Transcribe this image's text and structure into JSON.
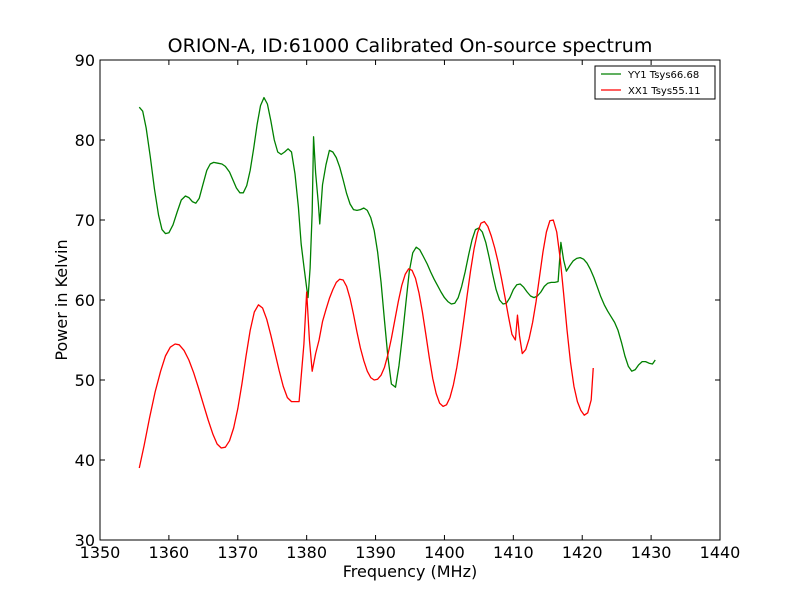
{
  "chart_data": {
    "type": "line",
    "title": "ORION-A, ID:61000 Calibrated On-source spectrum",
    "xlabel": "Frequency (MHz)",
    "ylabel": "Power in Kelvin",
    "xlim": [
      1350,
      1440
    ],
    "ylim": [
      30,
      90
    ],
    "xticks": [
      1350,
      1360,
      1370,
      1380,
      1390,
      1400,
      1410,
      1420,
      1430,
      1440
    ],
    "yticks": [
      30,
      40,
      50,
      60,
      70,
      80,
      90
    ],
    "legend_position": "top-right",
    "grid": false,
    "series": [
      {
        "name": "YY1 Tsys66.68",
        "color": "#008000",
        "points": [
          [
            1355.7,
            84.1
          ],
          [
            1356.2,
            83.6
          ],
          [
            1356.7,
            81.5
          ],
          [
            1357.3,
            77.9
          ],
          [
            1357.9,
            73.9
          ],
          [
            1358.5,
            70.6
          ],
          [
            1359.0,
            68.8
          ],
          [
            1359.5,
            68.3
          ],
          [
            1360.0,
            68.4
          ],
          [
            1360.6,
            69.4
          ],
          [
            1361.2,
            71.0
          ],
          [
            1361.8,
            72.5
          ],
          [
            1362.4,
            73.0
          ],
          [
            1362.9,
            72.8
          ],
          [
            1363.4,
            72.3
          ],
          [
            1363.9,
            72.1
          ],
          [
            1364.4,
            72.7
          ],
          [
            1364.9,
            74.3
          ],
          [
            1365.5,
            76.2
          ],
          [
            1366.0,
            77.0
          ],
          [
            1366.5,
            77.2
          ],
          [
            1367.1,
            77.1
          ],
          [
            1367.7,
            77.0
          ],
          [
            1368.2,
            76.7
          ],
          [
            1368.8,
            76.0
          ],
          [
            1369.3,
            75.0
          ],
          [
            1369.8,
            74.0
          ],
          [
            1370.3,
            73.4
          ],
          [
            1370.8,
            73.4
          ],
          [
            1371.3,
            74.3
          ],
          [
            1371.8,
            76.2
          ],
          [
            1372.3,
            78.9
          ],
          [
            1372.8,
            81.9
          ],
          [
            1373.3,
            84.3
          ],
          [
            1373.8,
            85.3
          ],
          [
            1374.3,
            84.5
          ],
          [
            1374.8,
            82.4
          ],
          [
            1375.3,
            80.0
          ],
          [
            1375.8,
            78.5
          ],
          [
            1376.3,
            78.2
          ],
          [
            1376.8,
            78.5
          ],
          [
            1377.3,
            78.9
          ],
          [
            1377.8,
            78.5
          ],
          [
            1378.3,
            75.8
          ],
          [
            1378.8,
            71.6
          ],
          [
            1379.2,
            67.0
          ],
          [
            1379.6,
            64.2
          ],
          [
            1380.0,
            61.5
          ],
          [
            1380.2,
            60.3
          ],
          [
            1380.5,
            64.0
          ],
          [
            1380.8,
            71.0
          ],
          [
            1381.0,
            80.4
          ],
          [
            1381.3,
            75.9
          ],
          [
            1381.7,
            72.0
          ],
          [
            1381.9,
            69.5
          ],
          [
            1382.3,
            74.4
          ],
          [
            1382.8,
            76.9
          ],
          [
            1383.3,
            78.7
          ],
          [
            1383.8,
            78.5
          ],
          [
            1384.3,
            77.8
          ],
          [
            1384.8,
            76.6
          ],
          [
            1385.3,
            75.0
          ],
          [
            1385.8,
            73.3
          ],
          [
            1386.3,
            72.0
          ],
          [
            1386.8,
            71.3
          ],
          [
            1387.3,
            71.2
          ],
          [
            1387.8,
            71.3
          ],
          [
            1388.3,
            71.5
          ],
          [
            1388.8,
            71.2
          ],
          [
            1389.3,
            70.3
          ],
          [
            1389.8,
            68.7
          ],
          [
            1390.3,
            66.0
          ],
          [
            1390.8,
            62.2
          ],
          [
            1391.3,
            57.4
          ],
          [
            1391.8,
            52.8
          ],
          [
            1392.3,
            49.5
          ],
          [
            1392.9,
            49.1
          ],
          [
            1393.4,
            51.8
          ],
          [
            1393.9,
            55.5
          ],
          [
            1394.4,
            59.6
          ],
          [
            1394.9,
            63.6
          ],
          [
            1395.4,
            65.9
          ],
          [
            1395.9,
            66.6
          ],
          [
            1396.4,
            66.3
          ],
          [
            1396.9,
            65.5
          ],
          [
            1397.5,
            64.5
          ],
          [
            1398.0,
            63.5
          ],
          [
            1398.5,
            62.6
          ],
          [
            1399.0,
            61.8
          ],
          [
            1399.5,
            61.0
          ],
          [
            1400.0,
            60.3
          ],
          [
            1400.5,
            59.8
          ],
          [
            1401.0,
            59.5
          ],
          [
            1401.5,
            59.6
          ],
          [
            1402.0,
            60.3
          ],
          [
            1402.5,
            61.7
          ],
          [
            1403.0,
            63.5
          ],
          [
            1403.5,
            65.6
          ],
          [
            1404.0,
            67.5
          ],
          [
            1404.5,
            68.8
          ],
          [
            1405.0,
            69.0
          ],
          [
            1405.5,
            68.5
          ],
          [
            1406.0,
            67.2
          ],
          [
            1406.5,
            65.3
          ],
          [
            1407.0,
            63.2
          ],
          [
            1407.5,
            61.3
          ],
          [
            1408.0,
            60.0
          ],
          [
            1408.5,
            59.5
          ],
          [
            1409.0,
            59.6
          ],
          [
            1409.5,
            60.3
          ],
          [
            1410.0,
            61.3
          ],
          [
            1410.5,
            61.9
          ],
          [
            1411.0,
            62.0
          ],
          [
            1411.5,
            61.6
          ],
          [
            1412.0,
            61.0
          ],
          [
            1412.5,
            60.5
          ],
          [
            1413.0,
            60.3
          ],
          [
            1413.5,
            60.5
          ],
          [
            1414.0,
            61.0
          ],
          [
            1414.5,
            61.7
          ],
          [
            1415.0,
            62.1
          ],
          [
            1415.5,
            62.2
          ],
          [
            1416.0,
            62.2
          ],
          [
            1416.5,
            62.3
          ],
          [
            1416.9,
            67.2
          ],
          [
            1417.3,
            65.0
          ],
          [
            1417.7,
            63.6
          ],
          [
            1418.2,
            64.3
          ],
          [
            1418.7,
            64.9
          ],
          [
            1419.2,
            65.2
          ],
          [
            1419.7,
            65.3
          ],
          [
            1420.2,
            65.1
          ],
          [
            1420.7,
            64.6
          ],
          [
            1421.2,
            63.8
          ],
          [
            1421.7,
            62.8
          ],
          [
            1422.2,
            61.6
          ],
          [
            1422.7,
            60.4
          ],
          [
            1423.2,
            59.4
          ],
          [
            1423.7,
            58.6
          ],
          [
            1424.2,
            57.9
          ],
          [
            1424.7,
            57.2
          ],
          [
            1425.2,
            56.2
          ],
          [
            1425.7,
            54.7
          ],
          [
            1426.2,
            53.0
          ],
          [
            1426.7,
            51.7
          ],
          [
            1427.2,
            51.1
          ],
          [
            1427.7,
            51.3
          ],
          [
            1428.2,
            51.9
          ],
          [
            1428.7,
            52.3
          ],
          [
            1429.2,
            52.3
          ],
          [
            1429.7,
            52.1
          ],
          [
            1430.2,
            52.0
          ],
          [
            1430.6,
            52.5
          ]
        ]
      },
      {
        "name": "XX1 Tsys55.11",
        "color": "#ff0000",
        "points": [
          [
            1355.7,
            39.0
          ],
          [
            1356.4,
            41.8
          ],
          [
            1357.2,
            45.3
          ],
          [
            1358.0,
            48.5
          ],
          [
            1358.8,
            51.1
          ],
          [
            1359.5,
            53.0
          ],
          [
            1360.2,
            54.1
          ],
          [
            1360.9,
            54.5
          ],
          [
            1361.5,
            54.4
          ],
          [
            1362.2,
            53.7
          ],
          [
            1362.9,
            52.5
          ],
          [
            1363.6,
            50.9
          ],
          [
            1364.3,
            49.0
          ],
          [
            1365.0,
            47.0
          ],
          [
            1365.7,
            45.0
          ],
          [
            1366.4,
            43.2
          ],
          [
            1367.0,
            42.0
          ],
          [
            1367.6,
            41.5
          ],
          [
            1368.2,
            41.6
          ],
          [
            1368.8,
            42.4
          ],
          [
            1369.4,
            44.0
          ],
          [
            1370.0,
            46.4
          ],
          [
            1370.6,
            49.5
          ],
          [
            1371.2,
            53.0
          ],
          [
            1371.8,
            56.2
          ],
          [
            1372.4,
            58.5
          ],
          [
            1373.0,
            59.4
          ],
          [
            1373.6,
            59.0
          ],
          [
            1374.2,
            57.6
          ],
          [
            1374.8,
            55.6
          ],
          [
            1375.4,
            53.4
          ],
          [
            1376.0,
            51.2
          ],
          [
            1376.6,
            49.2
          ],
          [
            1377.2,
            47.8
          ],
          [
            1377.8,
            47.3
          ],
          [
            1378.4,
            47.3
          ],
          [
            1378.9,
            47.3
          ],
          [
            1379.6,
            54.5
          ],
          [
            1380.0,
            61.0
          ],
          [
            1380.4,
            55.0
          ],
          [
            1380.8,
            51.1
          ],
          [
            1381.3,
            53.3
          ],
          [
            1381.8,
            55.0
          ],
          [
            1382.3,
            57.3
          ],
          [
            1382.8,
            58.8
          ],
          [
            1383.3,
            60.2
          ],
          [
            1383.8,
            61.3
          ],
          [
            1384.3,
            62.2
          ],
          [
            1384.8,
            62.6
          ],
          [
            1385.3,
            62.5
          ],
          [
            1385.8,
            61.7
          ],
          [
            1386.3,
            60.2
          ],
          [
            1386.8,
            58.2
          ],
          [
            1387.3,
            56.0
          ],
          [
            1387.8,
            54.0
          ],
          [
            1388.3,
            52.4
          ],
          [
            1388.8,
            51.1
          ],
          [
            1389.3,
            50.3
          ],
          [
            1389.8,
            50.0
          ],
          [
            1390.3,
            50.1
          ],
          [
            1390.8,
            50.6
          ],
          [
            1391.3,
            51.6
          ],
          [
            1391.8,
            53.2
          ],
          [
            1392.3,
            55.2
          ],
          [
            1392.8,
            57.5
          ],
          [
            1393.3,
            59.8
          ],
          [
            1393.8,
            61.8
          ],
          [
            1394.3,
            63.2
          ],
          [
            1394.8,
            63.9
          ],
          [
            1395.3,
            63.7
          ],
          [
            1395.8,
            62.7
          ],
          [
            1396.3,
            60.9
          ],
          [
            1396.8,
            58.5
          ],
          [
            1397.3,
            55.7
          ],
          [
            1397.8,
            52.8
          ],
          [
            1398.3,
            50.2
          ],
          [
            1398.8,
            48.3
          ],
          [
            1399.3,
            47.1
          ],
          [
            1399.8,
            46.7
          ],
          [
            1400.3,
            46.9
          ],
          [
            1400.8,
            47.8
          ],
          [
            1401.3,
            49.4
          ],
          [
            1401.8,
            51.6
          ],
          [
            1402.3,
            54.3
          ],
          [
            1402.8,
            57.4
          ],
          [
            1403.3,
            60.6
          ],
          [
            1403.8,
            63.7
          ],
          [
            1404.3,
            66.4
          ],
          [
            1404.8,
            68.4
          ],
          [
            1405.3,
            69.6
          ],
          [
            1405.8,
            69.8
          ],
          [
            1406.3,
            69.2
          ],
          [
            1406.8,
            68.0
          ],
          [
            1407.3,
            66.5
          ],
          [
            1407.8,
            64.7
          ],
          [
            1408.3,
            62.6
          ],
          [
            1408.8,
            60.3
          ],
          [
            1409.3,
            57.9
          ],
          [
            1409.8,
            55.7
          ],
          [
            1410.3,
            55.0
          ],
          [
            1410.6,
            58.1
          ],
          [
            1410.9,
            55.5
          ],
          [
            1411.3,
            53.3
          ],
          [
            1411.8,
            53.8
          ],
          [
            1412.3,
            55.2
          ],
          [
            1412.8,
            57.2
          ],
          [
            1413.3,
            59.8
          ],
          [
            1413.8,
            62.9
          ],
          [
            1414.3,
            66.0
          ],
          [
            1414.8,
            68.5
          ],
          [
            1415.3,
            69.9
          ],
          [
            1415.8,
            70.0
          ],
          [
            1416.3,
            68.5
          ],
          [
            1416.8,
            65.2
          ],
          [
            1417.3,
            60.8
          ],
          [
            1417.8,
            56.2
          ],
          [
            1418.3,
            52.2
          ],
          [
            1418.8,
            49.2
          ],
          [
            1419.3,
            47.3
          ],
          [
            1419.8,
            46.2
          ],
          [
            1420.3,
            45.6
          ],
          [
            1420.8,
            45.9
          ],
          [
            1421.3,
            47.5
          ],
          [
            1421.6,
            51.5
          ]
        ]
      }
    ]
  }
}
